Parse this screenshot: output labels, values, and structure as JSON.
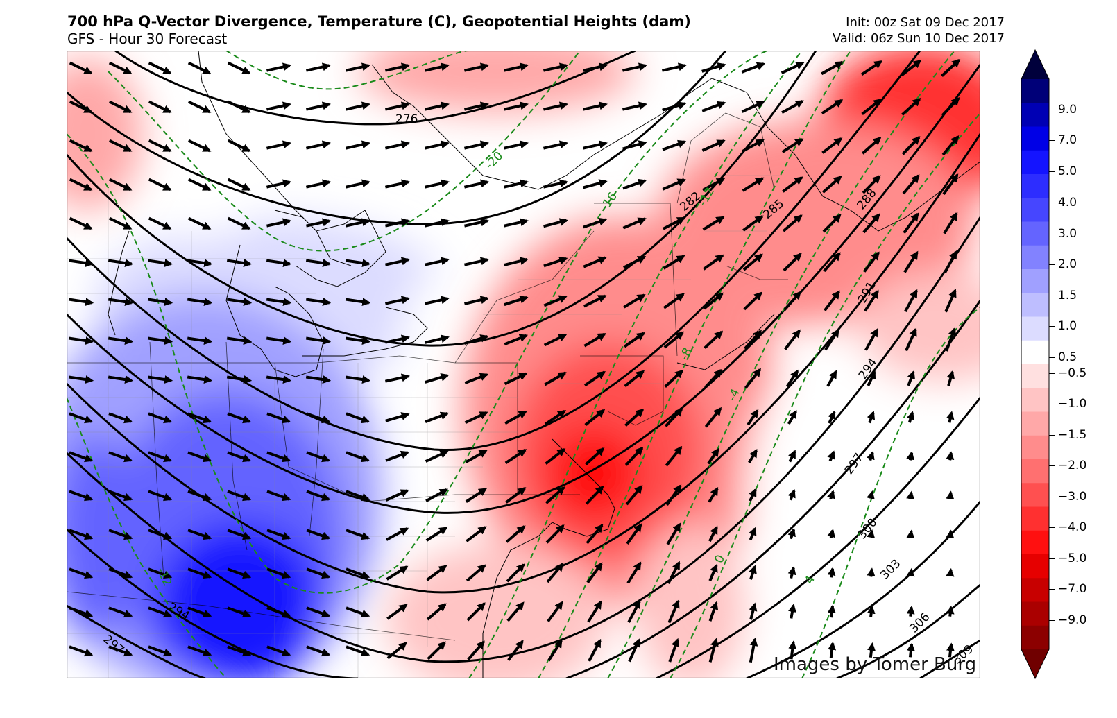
{
  "header": {
    "title": "700 hPa Q-Vector Divergence, Temperature (C), Geopotential Heights (dam)",
    "subtitle": "GFS - Hour 30 Forecast",
    "init": "Init: 00z Sat 09 Dec 2017",
    "valid": "Valid: 06z Sun 10 Dec 2017"
  },
  "map": {
    "credit": "Images by Tomer Burg",
    "height_contour_labels": [
      "276",
      "282",
      "285",
      "288",
      "291",
      "294",
      "297",
      "300",
      "303",
      "306",
      "309",
      "294",
      "297"
    ],
    "temperature_contour_labels": [
      "-20",
      "-16",
      "-12",
      "-8",
      "-4",
      "0",
      "4",
      "-12"
    ],
    "colors": {
      "height_contours": "#000000",
      "temperature_contours": "#1a8a1a",
      "q_vectors": "#000000",
      "convergence_max": "#e60000",
      "divergence_max": "#0000e6"
    }
  },
  "colorbar": {
    "ticks": [
      "9.0",
      "7.0",
      "5.0",
      "4.0",
      "3.0",
      "2.0",
      "1.5",
      "1.0",
      "0.5",
      "−0.5",
      "−1.0",
      "−1.5",
      "−2.0",
      "−3.0",
      "−4.0",
      "−5.0",
      "−7.0",
      "−9.0"
    ],
    "colors": [
      "#00003c",
      "#000078",
      "#0000b4",
      "#0000e6",
      "#1414ff",
      "#2d2dff",
      "#4646ff",
      "#6464ff",
      "#8282ff",
      "#a0a0ff",
      "#bebeff",
      "#dcdcff",
      "#ffffff",
      "#ffe0e0",
      "#ffc4c4",
      "#ffa8a8",
      "#ff8c8c",
      "#ff7070",
      "#ff5050",
      "#ff3030",
      "#ff1010",
      "#e60000",
      "#c80000",
      "#aa0000",
      "#8c0000",
      "#700000"
    ]
  }
}
